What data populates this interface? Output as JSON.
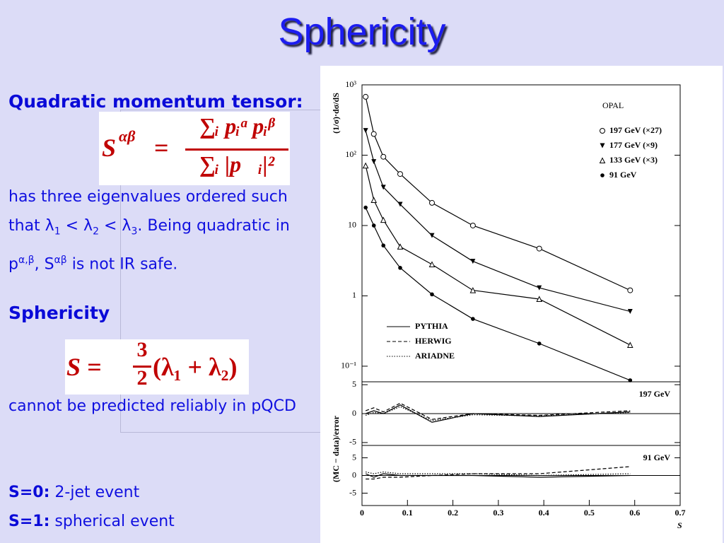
{
  "slide": {
    "title": "Sphericity",
    "heading1": "Quadratic momentum tensor:",
    "formula1": {
      "lhs": "S",
      "lhs_sup": "αβ",
      "eq": "=",
      "numerator": "∑ᵢ pᵢᵅ pᵢᵝ",
      "denominator": "∑ᵢ |p⃗ᵢ|²"
    },
    "para1": [
      "has three eigenvalues ordered such that λ",
      "1",
      " < λ",
      "2",
      " < λ",
      "3",
      ". Being quadratic in p",
      "α,β",
      ", S",
      "αβ",
      " is not IR safe."
    ],
    "heading2": "Sphericity",
    "formula2": {
      "lhs": "S =",
      "num": "3",
      "den": "2",
      "rest": "(λ₁ + λ₂)"
    },
    "para2": "cannot be predicted reliably in pQCD",
    "items": [
      {
        "term": "S=0:",
        "text": "2-jet event"
      },
      {
        "term": "S=1:",
        "text": "spherical event"
      }
    ]
  },
  "chart_data": [
    {
      "type": "scatter",
      "annotation": "OPAL",
      "ylabel": "(1/σ)·dσ/dS",
      "log_y": true,
      "xlim": [
        0,
        0.7
      ],
      "ylim": [
        0.06,
        1000
      ],
      "yticks": [
        {
          "value": 1000,
          "label": "10³"
        },
        {
          "value": 100,
          "label": "10²"
        },
        10,
        1,
        {
          "value": 0.1,
          "label": "10⁻¹"
        }
      ],
      "x": [
        0.008,
        0.026,
        0.047,
        0.084,
        0.154,
        0.244,
        0.39,
        0.59
      ],
      "series": [
        {
          "name": "197 GeV (×27)",
          "marker": "circle-open",
          "values": [
            676,
            200,
            95,
            54,
            21,
            10,
            4.7,
            1.2
          ]
        },
        {
          "name": "177 GeV (×9)",
          "marker": "triangle-down",
          "values": [
            224,
            81,
            35,
            20,
            7.2,
            3.1,
            1.3,
            0.6
          ]
        },
        {
          "name": "133 GeV (×3)",
          "marker": "triangle-up-open",
          "values": [
            71,
            23,
            12,
            5.0,
            2.8,
            1.2,
            0.9,
            0.2
          ]
        },
        {
          "name": "91 GeV",
          "marker": "dot",
          "values": [
            18,
            10,
            5.2,
            2.5,
            1.05,
            0.47,
            0.21,
            0.063
          ]
        }
      ],
      "mc_models": [
        {
          "name": "PYTHIA",
          "style": "solid"
        },
        {
          "name": "HERWIG",
          "style": "dashed"
        },
        {
          "name": "ARIADNE",
          "style": "dotted"
        }
      ]
    },
    {
      "type": "line",
      "annotation": "197 GeV",
      "ylabel": "(MC − data)/error",
      "xlim": [
        0,
        0.7
      ],
      "ylim": [
        -5.5,
        5.5
      ],
      "yticks": [
        5,
        0,
        -5
      ],
      "x": [
        0.008,
        0.026,
        0.047,
        0.084,
        0.154,
        0.244,
        0.39,
        0.59
      ],
      "series": [
        {
          "style": "solid",
          "values": [
            0,
            0.5,
            0,
            1.5,
            -1.5,
            0,
            -0.5,
            0.3
          ]
        },
        {
          "style": "dashed",
          "values": [
            0.5,
            1,
            0.3,
            1.8,
            -1,
            0,
            -0.3,
            0.5
          ]
        },
        {
          "style": "dotted",
          "values": [
            -0.3,
            0.2,
            0,
            1.2,
            -1.2,
            -0.2,
            -0.4,
            0.2
          ]
        }
      ]
    },
    {
      "type": "line",
      "annotation": "91 GeV",
      "xlabel": "S",
      "xlim": [
        0,
        0.7
      ],
      "xticks": [
        0,
        0.1,
        0.2,
        0.3,
        0.4,
        0.5,
        0.6,
        0.7
      ],
      "ylim": [
        -8.5,
        8.5
      ],
      "yticks": [
        5,
        0,
        -5
      ],
      "x": [
        0.008,
        0.026,
        0.047,
        0.084,
        0.154,
        0.244,
        0.39,
        0.59
      ],
      "series": [
        {
          "style": "solid",
          "values": [
            0.5,
            -0.5,
            0.5,
            0,
            0,
            0,
            -0.5,
            0
          ]
        },
        {
          "style": "dashed",
          "values": [
            -1,
            -1,
            -0.5,
            -0.5,
            0,
            0.5,
            0.5,
            2.5
          ]
        },
        {
          "style": "dotted",
          "values": [
            1,
            0.5,
            1,
            0.5,
            0.5,
            0.5,
            0,
            0.5
          ]
        }
      ]
    }
  ]
}
